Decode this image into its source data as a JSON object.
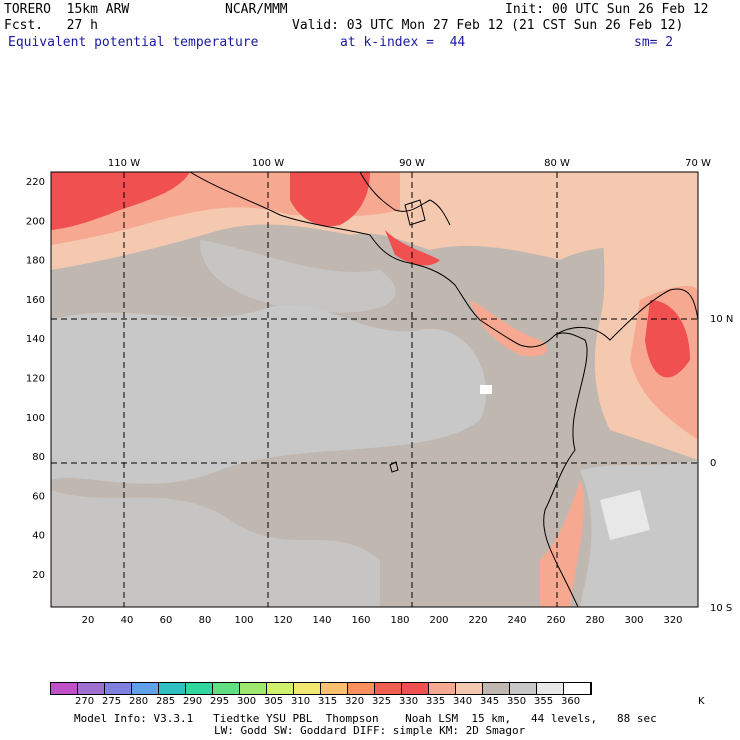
{
  "header": {
    "model": "TORERO  15km ARW",
    "fcst": "Fcst.   27 h",
    "center": "NCAR/MMM",
    "init": "Init: 00 UTC Sun 26 Feb 12",
    "valid": "Valid: 03 UTC Mon 27 Feb 12 (21 CST Sun 26 Feb 12)",
    "field": "Equivalent potential temperature",
    "level": "at k-index =  44",
    "smooth": "sm= 2"
  },
  "map": {
    "top_lon_labels": [
      "110 W",
      "100 W",
      "90 W",
      "80 W",
      "70 W"
    ],
    "right_lat_labels": [
      "10 N",
      "0",
      "10 S"
    ],
    "left_grid_labels": [
      "220",
      "200",
      "180",
      "160",
      "140",
      "120",
      "100",
      "80",
      "60",
      "40",
      "20"
    ],
    "bottom_grid_labels": [
      "20",
      "40",
      "60",
      "80",
      "100",
      "120",
      "140",
      "160",
      "180",
      "200",
      "220",
      "240",
      "260",
      "280",
      "300",
      "320"
    ],
    "colors": {
      "ocean_low": "#c8c8c8",
      "ocean_mid": "#c0b8b0",
      "warm1": "#f5c8b0",
      "warm2": "#f7a890",
      "warm3": "#f07060",
      "warm4": "#f05050"
    }
  },
  "colorbar": {
    "labels": [
      "270",
      "275",
      "280",
      "285",
      "290",
      "295",
      "300",
      "305",
      "310",
      "315",
      "320",
      "325",
      "330",
      "335",
      "340",
      "345",
      "350",
      "355",
      "360"
    ],
    "unit": "K",
    "colors": [
      "#c050c8",
      "#a070d0",
      "#8080e0",
      "#60a0e8",
      "#30c0c0",
      "#30d8a0",
      "#60e080",
      "#a0e870",
      "#d0f070",
      "#f0e870",
      "#f8c070",
      "#f89060",
      "#f06050",
      "#f05050",
      "#f7a890",
      "#f5c8b0",
      "#c0b8b0",
      "#c8c8c8",
      "#e8e8e8",
      "#ffffff"
    ]
  },
  "footer": {
    "line1": "Model Info: V3.3.1   Tiedtke YSU PBL  Thompson    Noah LSM  15 km,   44 levels,   88 sec",
    "line2": "LW: Godd SW: Goddard DIFF: simple KM: 2D Smagor"
  }
}
